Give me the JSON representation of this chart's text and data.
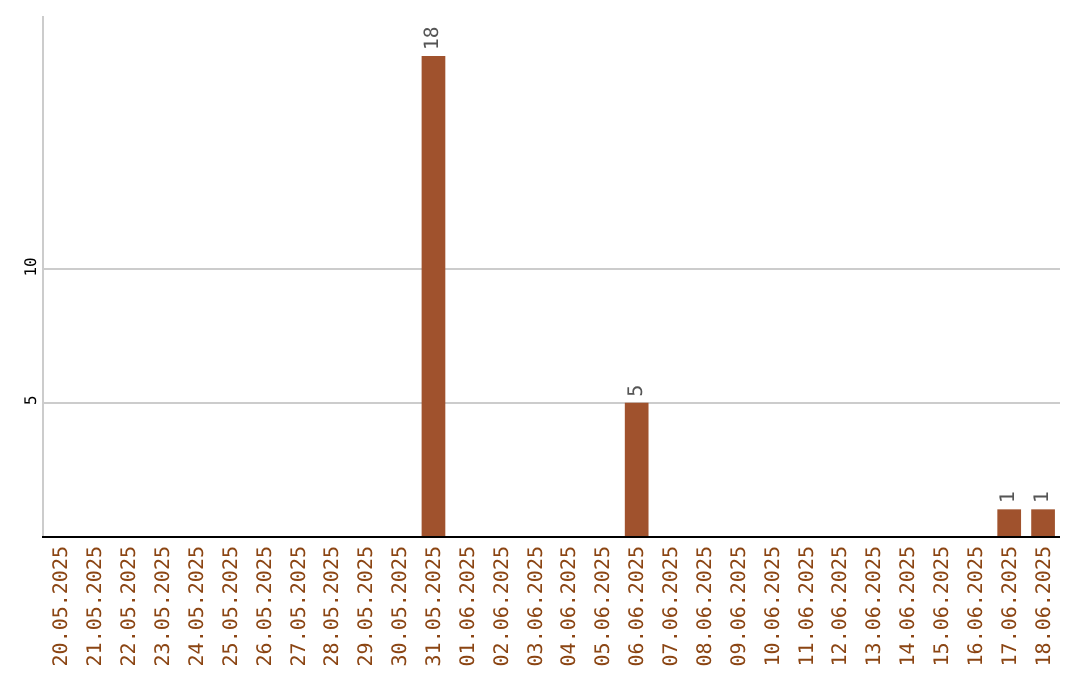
{
  "chart_data": {
    "type": "bar",
    "categories": [
      "20.05.2025",
      "21.05.2025",
      "22.05.2025",
      "23.05.2025",
      "24.05.2025",
      "25.05.2025",
      "26.05.2025",
      "27.05.2025",
      "28.05.2025",
      "29.05.2025",
      "30.05.2025",
      "31.05.2025",
      "01.06.2025",
      "02.06.2025",
      "03.06.2025",
      "04.06.2025",
      "05.06.2025",
      "06.06.2025",
      "07.06.2025",
      "08.06.2025",
      "09.06.2025",
      "10.06.2025",
      "11.06.2025",
      "12.06.2025",
      "13.06.2025",
      "14.06.2025",
      "15.06.2025",
      "16.06.2025",
      "17.06.2025",
      "18.06.2025"
    ],
    "values": [
      0,
      0,
      0,
      0,
      0,
      0,
      0,
      0,
      0,
      0,
      0,
      18,
      0,
      0,
      0,
      0,
      0,
      5,
      0,
      0,
      0,
      0,
      0,
      0,
      0,
      0,
      0,
      0,
      1,
      1
    ],
    "value_labels": [
      null,
      null,
      null,
      null,
      null,
      null,
      null,
      null,
      null,
      null,
      null,
      "18",
      null,
      null,
      null,
      null,
      null,
      "5",
      null,
      null,
      null,
      null,
      null,
      null,
      null,
      null,
      null,
      null,
      "1",
      "1"
    ],
    "color": "#a0522d",
    "ylim": [
      0,
      19.5
    ],
    "yticks": [
      5,
      10
    ],
    "grid": "y"
  }
}
